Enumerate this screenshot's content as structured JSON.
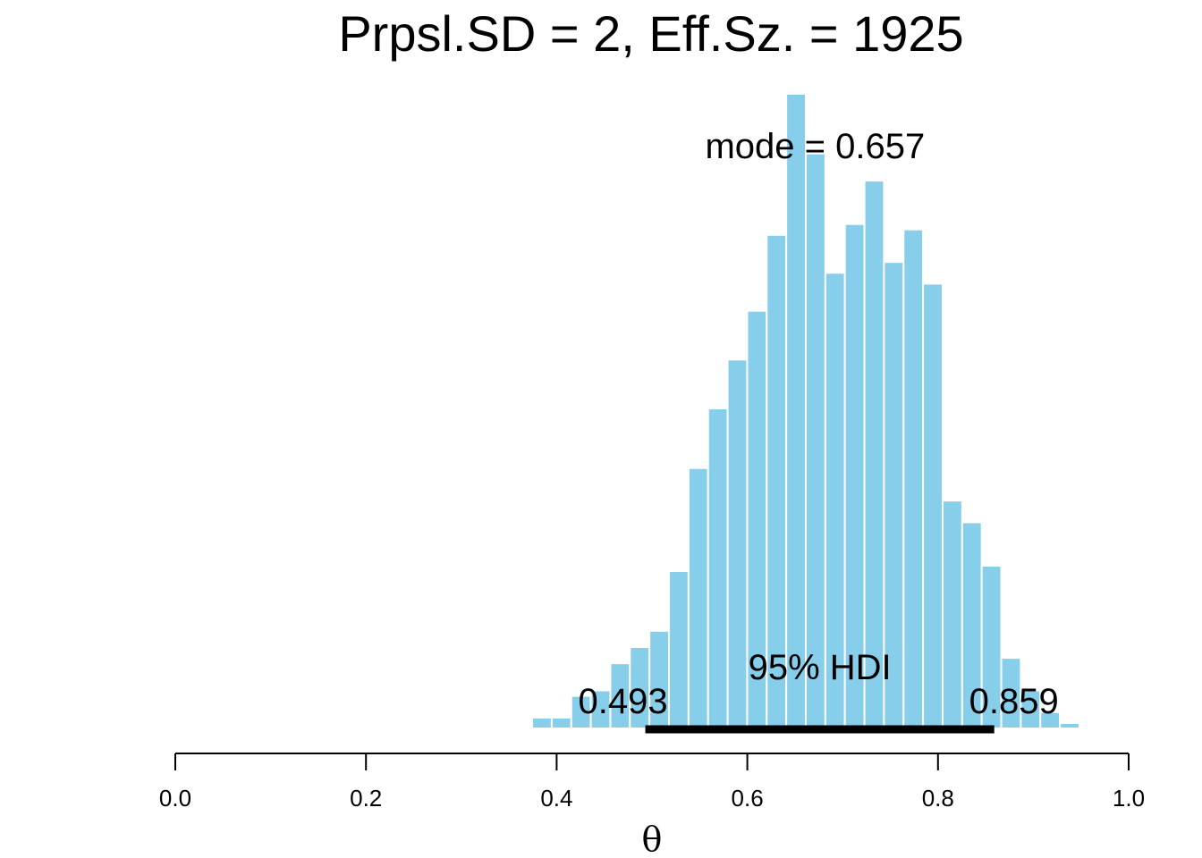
{
  "chart_data": {
    "type": "bar",
    "title": "Prpsl.SD = 2, Eff.Sz. = 1925",
    "xlabel": "θ",
    "ylabel": "",
    "xlim": [
      0,
      1
    ],
    "xticks": [
      "0.0",
      "0.2",
      "0.4",
      "0.6",
      "0.8",
      "1.0"
    ],
    "grid": false,
    "bar_color": "#87ceeb",
    "bin_width": 0.0205,
    "bins": [
      {
        "x": 0.3846,
        "value": 2
      },
      {
        "x": 0.4051,
        "value": 2
      },
      {
        "x": 0.4256,
        "value": 6
      },
      {
        "x": 0.4461,
        "value": 7
      },
      {
        "x": 0.4666,
        "value": 12
      },
      {
        "x": 0.4871,
        "value": 15
      },
      {
        "x": 0.5076,
        "value": 18
      },
      {
        "x": 0.5281,
        "value": 29
      },
      {
        "x": 0.5486,
        "value": 48
      },
      {
        "x": 0.5691,
        "value": 59
      },
      {
        "x": 0.5896,
        "value": 68
      },
      {
        "x": 0.6101,
        "value": 77
      },
      {
        "x": 0.6306,
        "value": 91
      },
      {
        "x": 0.6511,
        "value": 117
      },
      {
        "x": 0.6716,
        "value": 106
      },
      {
        "x": 0.6921,
        "value": 84
      },
      {
        "x": 0.7126,
        "value": 93
      },
      {
        "x": 0.7331,
        "value": 101
      },
      {
        "x": 0.7536,
        "value": 86
      },
      {
        "x": 0.7741,
        "value": 92
      },
      {
        "x": 0.7946,
        "value": 82
      },
      {
        "x": 0.8151,
        "value": 42
      },
      {
        "x": 0.8356,
        "value": 38
      },
      {
        "x": 0.8561,
        "value": 30
      },
      {
        "x": 0.8766,
        "value": 13
      },
      {
        "x": 0.8971,
        "value": 7
      },
      {
        "x": 0.9176,
        "value": 3
      },
      {
        "x": 0.9381,
        "value": 1
      }
    ],
    "mode": {
      "value": 0.657,
      "label": "mode = 0.657"
    },
    "hdi": {
      "label": "95% HDI",
      "low": 0.493,
      "high": 0.859,
      "low_label": "0.493",
      "high_label": "0.859"
    }
  }
}
